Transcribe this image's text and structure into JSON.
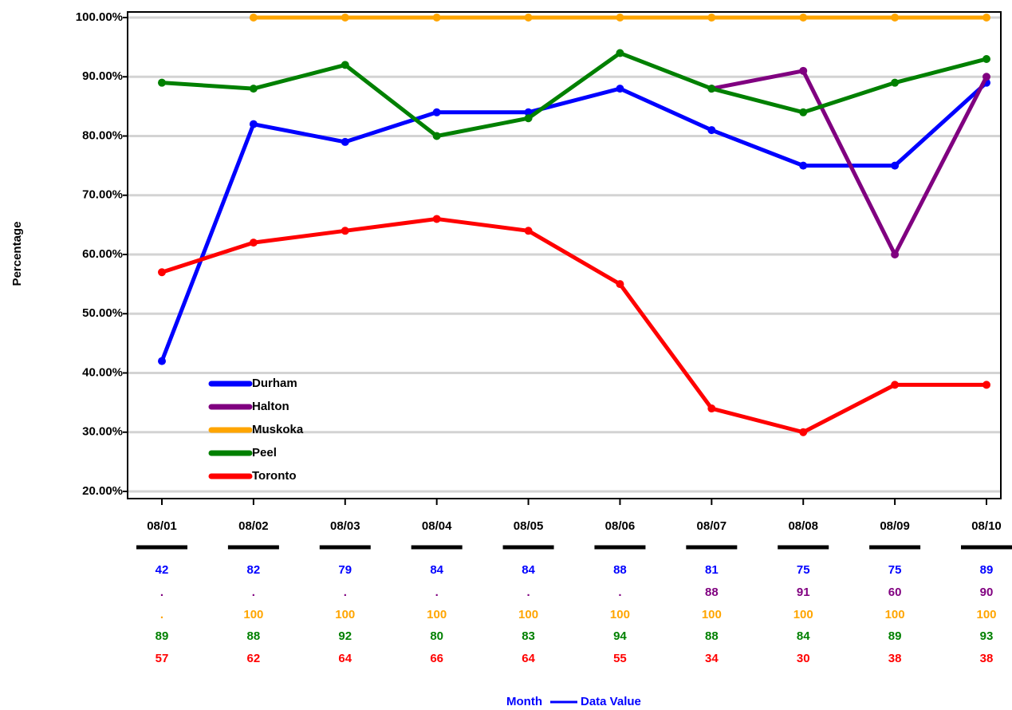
{
  "chart_data": {
    "type": "line",
    "ylabel": "Percentage",
    "xlabel": "Month",
    "footer_legend": "Data Value",
    "categories": [
      "08/01",
      "08/02",
      "08/03",
      "08/04",
      "08/05",
      "08/06",
      "08/07",
      "08/08",
      "08/09",
      "08/10"
    ],
    "series": [
      {
        "name": "Durham",
        "color": "#0000ff",
        "values": [
          42,
          82,
          79,
          84,
          84,
          88,
          81,
          75,
          75,
          89
        ]
      },
      {
        "name": "Halton",
        "color": "#800080",
        "values": [
          null,
          null,
          null,
          null,
          null,
          null,
          88,
          91,
          60,
          90
        ],
        "value_labels": [
          ".",
          ".",
          ".",
          ".",
          ".",
          ".",
          "88",
          "91",
          "60",
          "90"
        ]
      },
      {
        "name": "Muskoka",
        "color": "#ffa500",
        "values": [
          null,
          100,
          100,
          100,
          100,
          100,
          100,
          100,
          100,
          100
        ],
        "value_labels": [
          ".",
          "100",
          "100",
          "100",
          "100",
          "100",
          "100",
          "100",
          "100",
          "100"
        ]
      },
      {
        "name": "Peel",
        "color": "#008000",
        "values": [
          89,
          88,
          92,
          80,
          83,
          94,
          88,
          84,
          89,
          93
        ]
      },
      {
        "name": "Toronto",
        "color": "#ff0000",
        "values": [
          57,
          62,
          64,
          66,
          64,
          55,
          34,
          30,
          38,
          38
        ]
      }
    ],
    "ylim": [
      20,
      100
    ],
    "yticks": [
      {
        "value": 20,
        "label": "20.00%"
      },
      {
        "value": 30,
        "label": "30.00%"
      },
      {
        "value": 40,
        "label": "40.00%"
      },
      {
        "value": 50,
        "label": "50.00%"
      },
      {
        "value": 60,
        "label": "60.00%"
      },
      {
        "value": 70,
        "label": "70.00%"
      },
      {
        "value": 80,
        "label": "80.00%"
      },
      {
        "value": 90,
        "label": "90.00%"
      },
      {
        "value": 100,
        "label": "100.00%"
      }
    ],
    "grid": true,
    "legend": "lower left"
  }
}
